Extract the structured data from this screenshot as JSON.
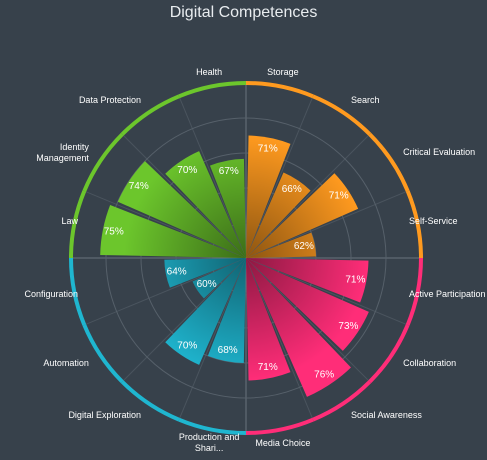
{
  "chart_data": {
    "type": "polar_bar",
    "title": "Digital Competences",
    "categories": [
      "Storage",
      "Search",
      "Critical Evaluation",
      "Self-Service",
      "Active Participation",
      "Collaboration",
      "Social Awareness",
      "Media Choice",
      "Production and Shari...",
      "Digital Exploration",
      "Automation",
      "Configuration",
      "Law",
      "Identity Management",
      "Data Protection",
      "Health"
    ],
    "values": [
      71,
      66,
      71,
      62,
      71,
      73,
      76,
      71,
      68,
      70,
      60,
      64,
      75,
      74,
      70,
      67
    ],
    "value_labels": [
      "71%",
      "66%",
      "71%",
      "62%",
      "71%",
      "73%",
      "76%",
      "71%",
      "68%",
      "70%",
      "60%",
      "64%",
      "75%",
      "74%",
      "70%",
      "67%"
    ],
    "colors": [
      "#ff9a1f",
      "#ff9a1f",
      "#ff9a1f",
      "#ff9a1f",
      "#ff2d78",
      "#ff2d78",
      "#ff2d78",
      "#ff2d78",
      "#1fb6d0",
      "#1fb6d0",
      "#1fb6d0",
      "#1fb6d0",
      "#6cc62c",
      "#6cc62c",
      "#6cc62c",
      "#6cc62c"
    ],
    "ylim": [
      50,
      80
    ],
    "yticks": [
      56,
      62,
      68,
      74
    ],
    "grid": true
  }
}
